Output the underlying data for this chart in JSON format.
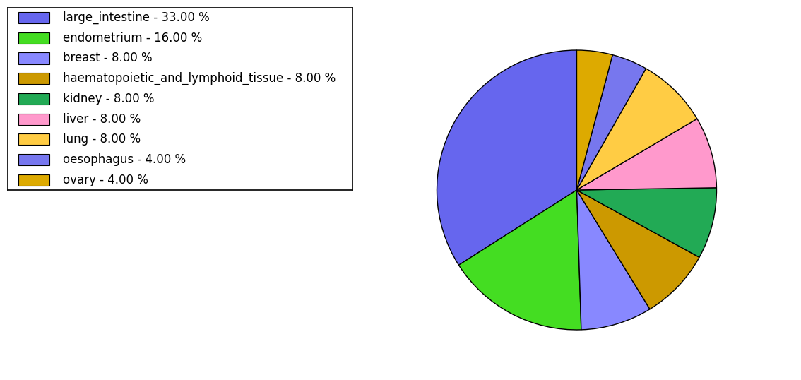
{
  "labels": [
    "large_intestine",
    "endometrium",
    "breast",
    "haematopoietic_and_lymphoid_tissue",
    "kidney",
    "liver",
    "lung",
    "oesophagus",
    "ovary"
  ],
  "values": [
    33.0,
    16.0,
    8.0,
    8.0,
    8.0,
    8.0,
    8.0,
    4.0,
    4.0
  ],
  "colors": [
    "#6666ee",
    "#44dd22",
    "#8888ff",
    "#cc9900",
    "#22aa55",
    "#ff99cc",
    "#ffcc44",
    "#7777ee",
    "#ddaa00"
  ],
  "legend_labels": [
    "large_intestine - 33.00 %",
    "endometrium - 16.00 %",
    "breast - 8.00 %",
    "haematopoietic_and_lymphoid_tissue - 8.00 %",
    "kidney - 8.00 %",
    "liver - 8.00 %",
    "lung - 8.00 %",
    "oesophagus - 4.00 %",
    "ovary - 4.00 %"
  ],
  "background_color": "#ffffff",
  "legend_fontsize": 12,
  "figsize": [
    11.34,
    5.38
  ],
  "dpi": 100,
  "startangle": 90
}
